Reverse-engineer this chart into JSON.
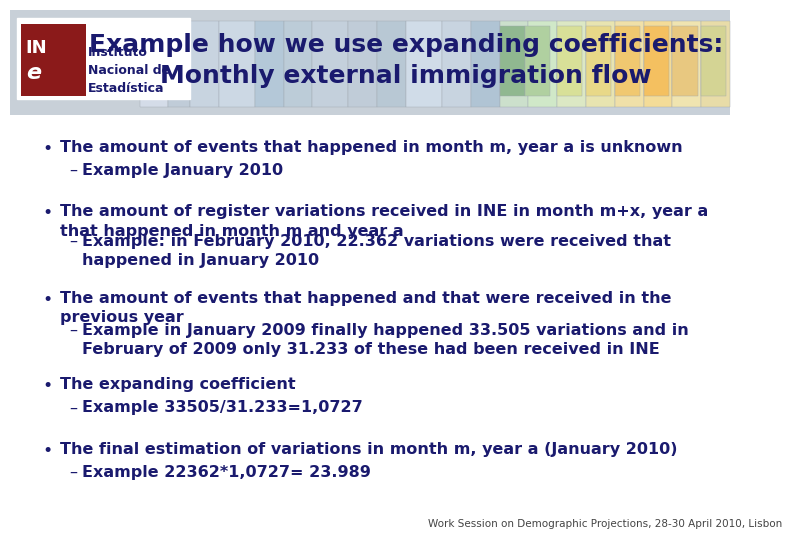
{
  "title_line1": "Example how we use expanding coefficients:",
  "title_line2": "Monthly external immigration flow",
  "title_color": "#1a1a6e",
  "title_fontsize": 18,
  "bg_color": "#ffffff",
  "header_bg": "none",
  "logo_box_color": "#8b1a1a",
  "logo_text_INe": "IN\ne",
  "logo_name_line1": "Instituto",
  "logo_name_line2": "Nacional de",
  "logo_name_line3": "Estadística",
  "bullets": [
    {
      "main": "The amount of events that happened in month m, year a is unknown",
      "sub": [
        "Example January 2010"
      ]
    },
    {
      "main": "The amount of register variations received in INE in month m+x, year a\nthat happened in month m and year a",
      "sub": [
        "Example: in February 2010, 22.362 variations were received that\nhappened in January 2010"
      ]
    },
    {
      "main": "The amount of events that happened and that were received in the\nprevious year",
      "sub": [
        "Example in January 2009 finally happened 33.505 variations and in\nFebruary of 2009 only 31.233 of these had been received in INE"
      ]
    },
    {
      "main": "The expanding coefficient",
      "sub": [
        "Example 33505/31.233=1,0727"
      ]
    },
    {
      "main": "The final estimation of variations in month m, year a (January 2010)",
      "sub": [
        "Example 22362*1,0727= 23.989"
      ]
    }
  ],
  "footnote": "Work Session on Demographic Projections, 28-30 April 2010, Lisbon",
  "text_color": "#1a1a6e",
  "bullet_fontsize": 11.5,
  "sub_fontsize": 11.5,
  "footnote_fontsize": 7.5
}
